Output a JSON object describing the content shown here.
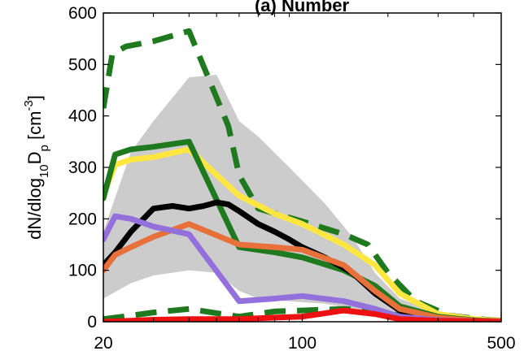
{
  "chart_data": {
    "type": "line",
    "title": "(a) Number",
    "ylabel": {
      "part1": "dN/dlog",
      "sub1": "10",
      "part2": "D",
      "sub2": "p",
      "part3": " [cm",
      "sup": "-3",
      "part4": "]"
    },
    "xlabel": "",
    "x_scale": "log",
    "xlim": [
      20,
      500
    ],
    "ylim": [
      0,
      600
    ],
    "x_ticks": [
      20,
      100,
      500
    ],
    "x_tick_labels": [
      "20",
      "100",
      "500"
    ],
    "y_ticks": [
      0,
      100,
      200,
      300,
      400,
      500,
      600
    ],
    "y_tick_labels": [
      "0",
      "100",
      "200",
      "300",
      "400",
      "500",
      "600"
    ],
    "grid": false,
    "band": {
      "color": "#cccccc",
      "x": [
        20,
        25,
        30,
        40,
        50,
        60,
        70,
        90,
        120,
        150,
        180,
        220,
        300,
        400,
        500
      ],
      "upper": [
        175,
        330,
        390,
        475,
        480,
        390,
        360,
        300,
        230,
        165,
        95,
        45,
        18,
        6,
        2
      ],
      "lower": [
        45,
        75,
        90,
        100,
        95,
        60,
        45,
        40,
        35,
        25,
        12,
        5,
        2,
        1,
        0
      ]
    },
    "series": [
      {
        "color": "#1f7a1f",
        "dash": true,
        "x": [
          20,
          21.5,
          24,
          30,
          40,
          55,
          60,
          70,
          100,
          140,
          170,
          200,
          250,
          330,
          420,
          500
        ],
        "values": [
          415,
          520,
          535,
          545,
          565,
          380,
          285,
          220,
          195,
          170,
          150,
          95,
          40,
          12,
          5,
          2
        ]
      },
      {
        "color": "#1f7a1f",
        "dash": true,
        "x": [
          20,
          25,
          30,
          40,
          60,
          80,
          100,
          140,
          180,
          220,
          300,
          400,
          500
        ],
        "values": [
          5,
          12,
          18,
          25,
          10,
          20,
          22,
          25,
          22,
          12,
          5,
          2,
          1
        ]
      },
      {
        "color": "#ffe640",
        "dash": false,
        "x": [
          20,
          22,
          25,
          30,
          40,
          60,
          80,
          100,
          140,
          180,
          220,
          300,
          400,
          500
        ],
        "values": [
          245,
          305,
          315,
          320,
          335,
          245,
          210,
          190,
          150,
          110,
          55,
          15,
          5,
          2
        ]
      },
      {
        "color": "#1f7a1f",
        "dash": false,
        "x": [
          20,
          22,
          25,
          30,
          40,
          60,
          80,
          100,
          140,
          180,
          220,
          300,
          400,
          500
        ],
        "values": [
          240,
          325,
          335,
          340,
          350,
          145,
          135,
          125,
          100,
          70,
          30,
          10,
          3,
          1
        ]
      },
      {
        "color": "#000000",
        "dash": false,
        "x": [
          20,
          22,
          25,
          30,
          35,
          40,
          45,
          50,
          55,
          60,
          70,
          80,
          90,
          100,
          120,
          150,
          180,
          220,
          260,
          300,
          350,
          400,
          500
        ],
        "values": [
          110,
          135,
          175,
          220,
          225,
          220,
          225,
          232,
          228,
          215,
          190,
          175,
          160,
          145,
          125,
          95,
          55,
          22,
          10,
          5,
          3,
          2,
          1
        ]
      },
      {
        "color": "#e8703a",
        "dash": false,
        "x": [
          20,
          22,
          25,
          30,
          40,
          60,
          80,
          100,
          140,
          180,
          220,
          300,
          400,
          500
        ],
        "values": [
          100,
          130,
          145,
          165,
          190,
          150,
          145,
          140,
          110,
          60,
          25,
          8,
          2,
          1
        ]
      },
      {
        "color": "#9370db",
        "dash": false,
        "x": [
          20,
          22,
          25,
          30,
          40,
          60,
          80,
          100,
          140,
          180,
          220,
          300,
          400,
          500
        ],
        "values": [
          160,
          205,
          200,
          185,
          170,
          40,
          45,
          50,
          40,
          25,
          10,
          3,
          1,
          0
        ]
      },
      {
        "color": "#ee1111",
        "dash": false,
        "x": [
          20,
          25,
          30,
          40,
          60,
          80,
          100,
          140,
          180,
          220,
          300,
          400,
          500
        ],
        "values": [
          0,
          2,
          4,
          5,
          5,
          8,
          10,
          22,
          15,
          5,
          2,
          1,
          0
        ]
      }
    ]
  }
}
